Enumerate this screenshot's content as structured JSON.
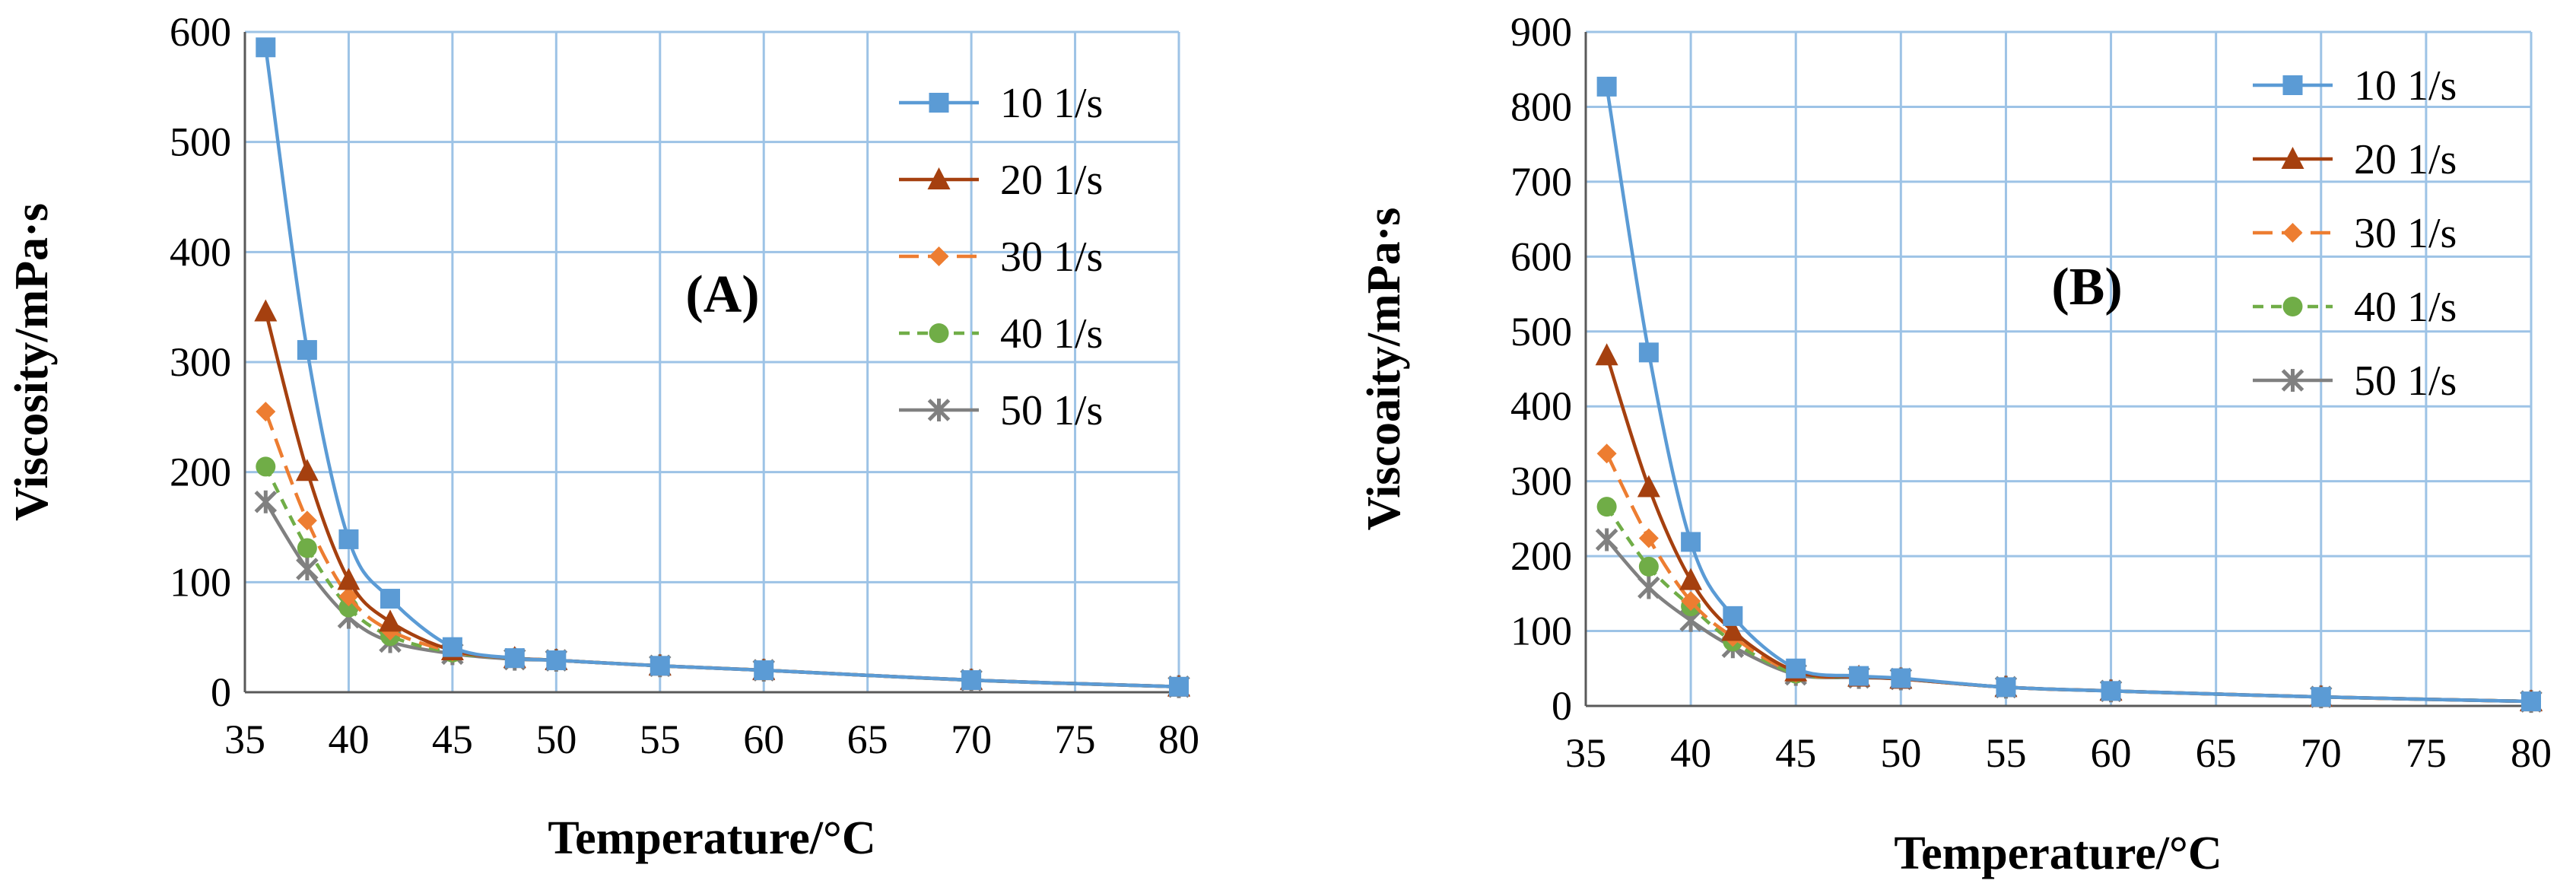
{
  "chart_data": [
    {
      "type": "line",
      "panel_label": "(A)",
      "xlabel": "Temperature/°C",
      "ylabel": "Viscosity/mPa·s",
      "xlim": [
        35,
        80
      ],
      "ylim": [
        0,
        600
      ],
      "xticks": [
        35,
        40,
        45,
        50,
        55,
        60,
        65,
        70,
        75,
        80
      ],
      "yticks": [
        0,
        100,
        200,
        300,
        400,
        500,
        600
      ],
      "grid": true,
      "legend_position": "top-right",
      "x": [
        36,
        38,
        40,
        42,
        45,
        48,
        50,
        55,
        60,
        70,
        80
      ],
      "series": [
        {
          "name": "10 1/s",
          "color": "#5B9BD5",
          "marker": "square",
          "dash": "solid",
          "values": [
            586,
            311,
            139,
            85,
            41,
            31,
            29,
            24,
            20,
            11,
            5
          ]
        },
        {
          "name": "20 1/s",
          "color": "#A5400F",
          "marker": "triangle",
          "dash": "solid",
          "values": [
            346,
            201,
            102,
            64,
            38,
            31,
            29,
            24,
            20,
            11,
            5
          ]
        },
        {
          "name": "30 1/s",
          "color": "#ED7D31",
          "marker": "diamond",
          "dash": "longdash",
          "values": [
            255,
            156,
            87,
            56,
            37,
            31,
            29,
            24,
            20,
            11,
            5
          ]
        },
        {
          "name": "40 1/s",
          "color": "#70AD47",
          "marker": "circle",
          "dash": "dash",
          "values": [
            205,
            131,
            77,
            51,
            36,
            31,
            29,
            24,
            20,
            11,
            5
          ]
        },
        {
          "name": "50 1/s",
          "color": "#808080",
          "marker": "star",
          "dash": "solid",
          "values": [
            173,
            112,
            68,
            46,
            35,
            30,
            29,
            24,
            20,
            11,
            5
          ]
        }
      ]
    },
    {
      "type": "line",
      "panel_label": "(B)",
      "xlabel": "Temperature/°C",
      "ylabel": "Viscoaity/mPa·s",
      "xlim": [
        35,
        80
      ],
      "ylim": [
        0,
        900
      ],
      "xticks": [
        35,
        40,
        45,
        50,
        55,
        60,
        65,
        70,
        75,
        80
      ],
      "yticks": [
        0,
        100,
        200,
        300,
        400,
        500,
        600,
        700,
        800,
        900
      ],
      "grid": true,
      "legend_position": "top-right",
      "x": [
        36,
        38,
        40,
        42,
        45,
        48,
        50,
        55,
        60,
        70,
        80
      ],
      "series": [
        {
          "name": "10 1/s",
          "color": "#5B9BD5",
          "marker": "square",
          "dash": "solid",
          "values": [
            827,
            472,
            219,
            120,
            50,
            40,
            37,
            25,
            20,
            12,
            6
          ]
        },
        {
          "name": "20 1/s",
          "color": "#A5400F",
          "marker": "triangle",
          "dash": "solid",
          "values": [
            468,
            292,
            168,
            100,
            46,
            39,
            36,
            25,
            20,
            12,
            6
          ]
        },
        {
          "name": "30 1/s",
          "color": "#ED7D31",
          "marker": "diamond",
          "dash": "longdash",
          "values": [
            337,
            224,
            140,
            92,
            44,
            39,
            36,
            25,
            20,
            12,
            6
          ]
        },
        {
          "name": "40 1/s",
          "color": "#70AD47",
          "marker": "circle",
          "dash": "dash",
          "values": [
            266,
            186,
            133,
            86,
            43,
            39,
            36,
            25,
            20,
            12,
            6
          ]
        },
        {
          "name": "50 1/s",
          "color": "#808080",
          "marker": "star",
          "dash": "solid",
          "values": [
            222,
            158,
            114,
            79,
            42,
            38,
            36,
            25,
            20,
            12,
            6
          ]
        }
      ]
    }
  ]
}
